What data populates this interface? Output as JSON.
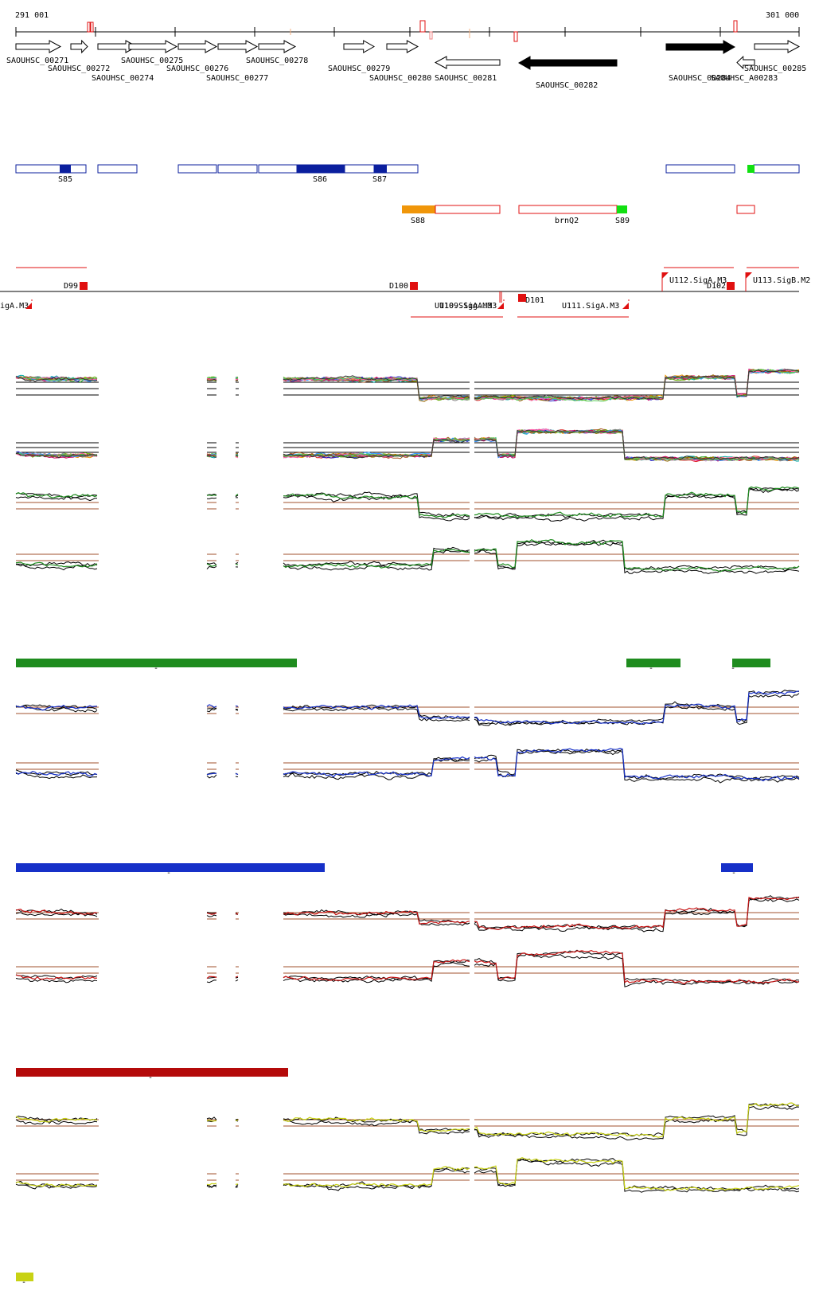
{
  "ruler": {
    "start_label": "291 001",
    "end_label": "301 000"
  },
  "genes": [
    {
      "name": "SAOUHSC_00271",
      "strand": "+",
      "filled": false
    },
    {
      "name": "SAOUHSC_00272",
      "strand": "+",
      "filled": false
    },
    {
      "name": "SAOUHSC_00274",
      "strand": "+",
      "filled": false
    },
    {
      "name": "SAOUHSC_00275",
      "strand": "+",
      "filled": false
    },
    {
      "name": "SAOUHSC_00276",
      "strand": "+",
      "filled": false
    },
    {
      "name": "SAOUHSC_00277",
      "strand": "+",
      "filled": false
    },
    {
      "name": "SAOUHSC_00278",
      "strand": "+",
      "filled": false
    },
    {
      "name": "SAOUHSC_00279",
      "strand": "+",
      "filled": false
    },
    {
      "name": "SAOUHSC_00280",
      "strand": "+",
      "filled": false
    },
    {
      "name": "SAOUHSC_00281",
      "strand": "-",
      "filled": false
    },
    {
      "name": "SAOUHSC_00282",
      "strand": "-",
      "filled": true
    },
    {
      "name": "SAOUHSC_00284",
      "strand": "+",
      "filled": true
    },
    {
      "name": "SAOUHSC_A00283",
      "strand": "-",
      "filled": false
    },
    {
      "name": "SAOUHSC_00285",
      "strand": "+",
      "filled": false
    }
  ],
  "segments_blue": [
    "S85",
    "S86",
    "S87"
  ],
  "segments_red": [
    "S88",
    "brnQ2",
    "S89"
  ],
  "features_top": [
    "D99",
    "D100",
    "U112.SigA.M3",
    "D102",
    "U113.SigB.M2"
  ],
  "features_bottom": [
    "igA.M3",
    "U110.SigA.M3",
    "U109.SigA.M3",
    "D101",
    "U111.SigA.M3"
  ],
  "colors": {
    "blue_segment": "#0b1f9e",
    "red_segment": "#e01010",
    "orange_segment": "#f0960a",
    "green_segment": "#11e011",
    "green_track": "#1e8c1e",
    "blue_track": "#1630c8",
    "red_track": "#c81414",
    "yellow_track": "#c8d214",
    "darkred_bar": "#b40a0a"
  },
  "legend_marks": [
    "-",
    "-",
    "-",
    "-",
    "-",
    "-",
    "-"
  ]
}
